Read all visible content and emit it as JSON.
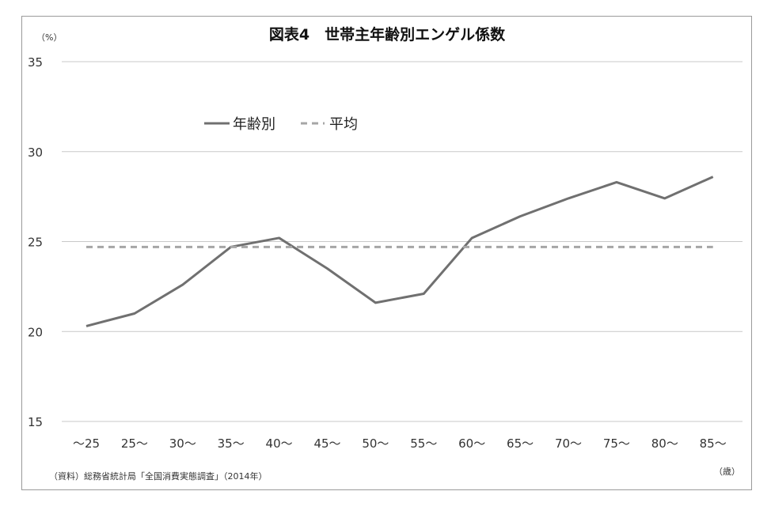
{
  "chart_data": {
    "type": "line",
    "title": "図表4　世帯主年齢別エンゲル係数",
    "y_unit_label": "（%）",
    "x_unit_label": "（歳）",
    "source": "（資料）総務省統計局「全国消費実態調査」（2014年）",
    "categories": [
      "～25",
      "25～",
      "30～",
      "35～",
      "40～",
      "45～",
      "50～",
      "55～",
      "60～",
      "65～",
      "70～",
      "75～",
      "80～",
      "85～"
    ],
    "ylim": [
      15,
      35
    ],
    "yticks": [
      "15",
      "20",
      "25",
      "30",
      "35"
    ],
    "grid": true,
    "legend_position": "top-left",
    "series": [
      {
        "name": "年齢別",
        "style": "solid",
        "color": "#707070",
        "values": [
          20.3,
          21.0,
          22.6,
          24.7,
          25.2,
          23.5,
          21.6,
          22.1,
          25.2,
          26.4,
          27.4,
          28.3,
          27.4,
          28.6
        ]
      },
      {
        "name": "平均",
        "style": "dashed",
        "color": "#a6a6a6",
        "values": [
          24.7,
          24.7,
          24.7,
          24.7,
          24.7,
          24.7,
          24.7,
          24.7,
          24.7,
          24.7,
          24.7,
          24.7,
          24.7,
          24.7
        ]
      }
    ]
  }
}
